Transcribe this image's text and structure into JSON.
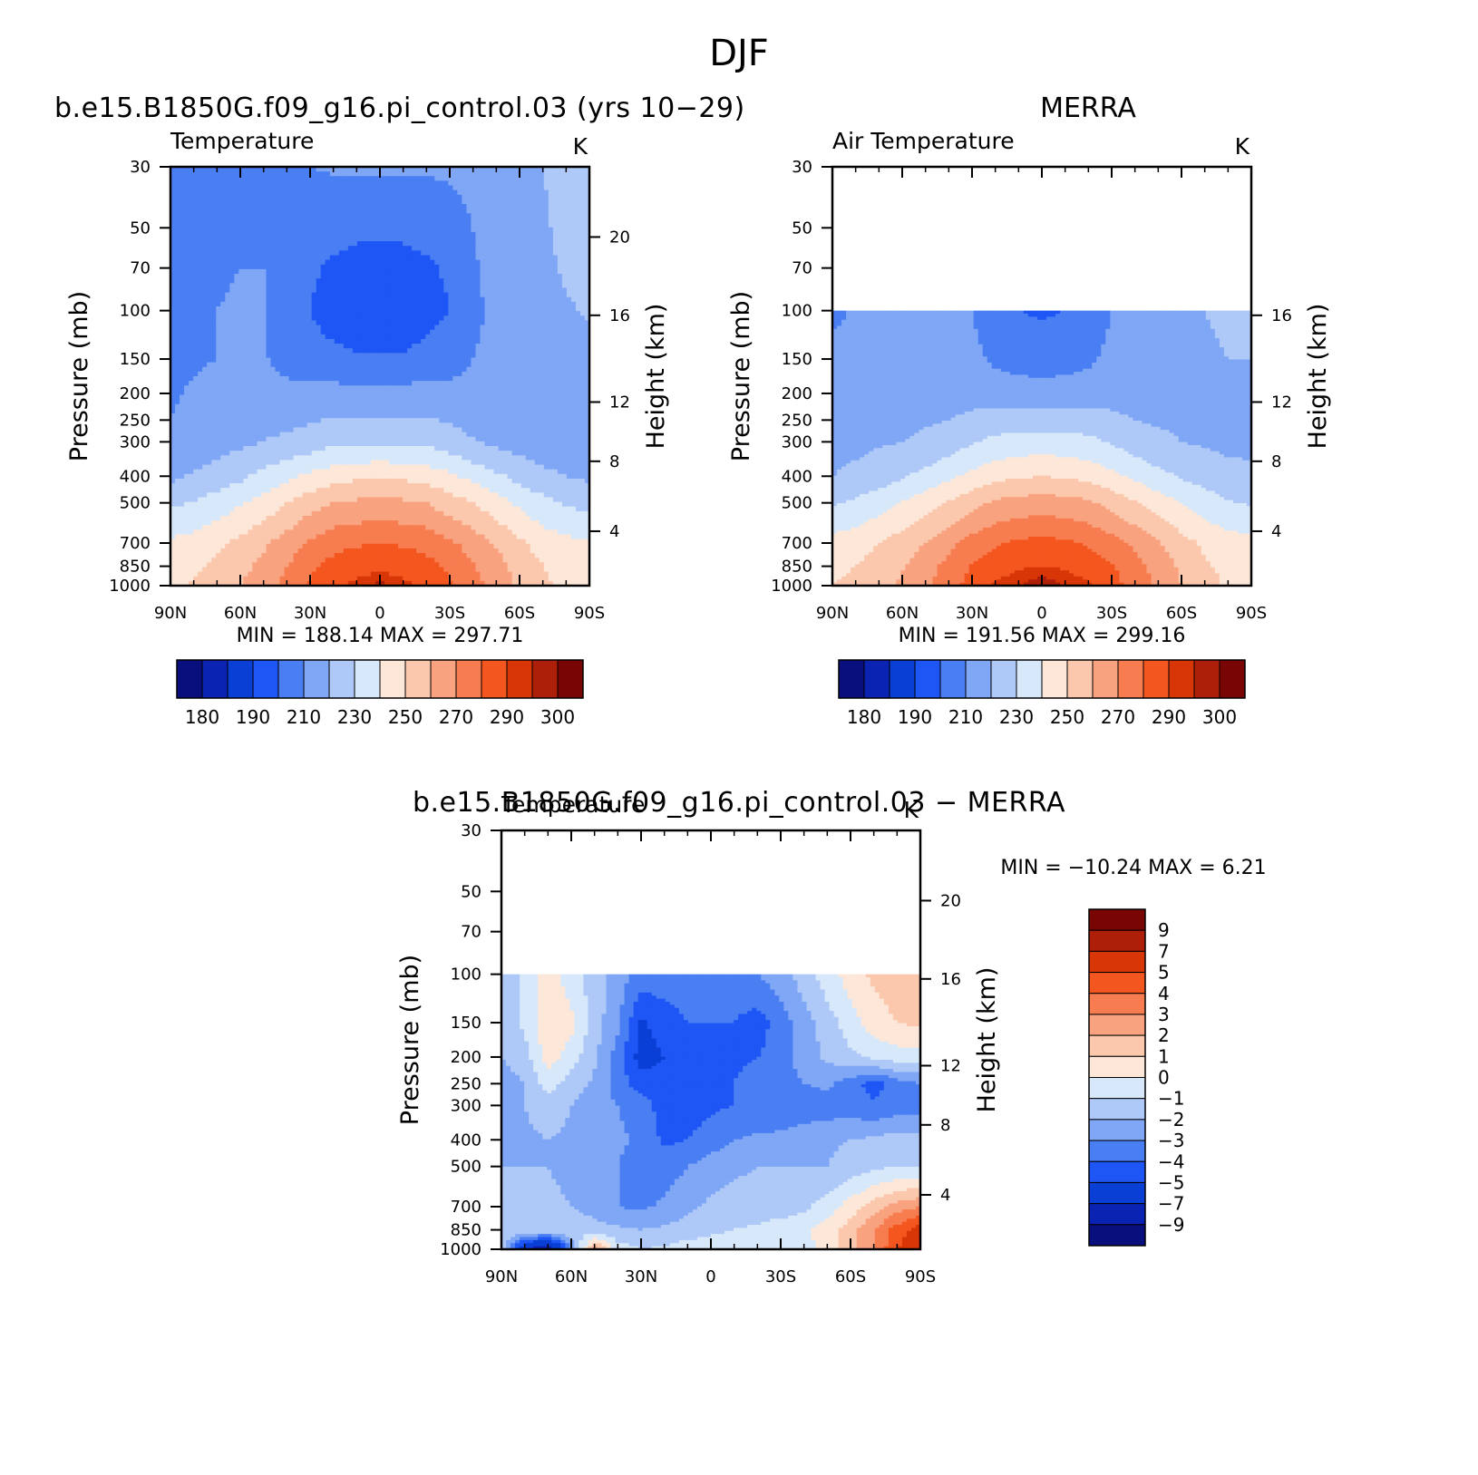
{
  "figure": {
    "title": "DJF",
    "panels": {
      "model": {
        "header": "b.e15.B1850G.f09_g16.pi_control.03 (yrs 10−29)",
        "left_label": "Temperature",
        "unit": "K",
        "stats": "MIN = 188.14   MAX = 297.71"
      },
      "merra": {
        "header": "MERRA",
        "left_label": "Air Temperature",
        "unit": "K",
        "stats": "MIN = 191.56   MAX = 299.16"
      },
      "diff": {
        "header": "b.e15.B1850G.f09_g16.pi_control.03 − MERRA",
        "left_label": "Temperature",
        "unit": "K",
        "stats": "MIN = −10.24   MAX =    6.21"
      }
    }
  },
  "colors": {
    "abs_palette": [
      "#0a0f7e",
      "#0a23b3",
      "#0a3fd6",
      "#1e56f5",
      "#4a7ef3",
      "#7fa7f5",
      "#aec8f7",
      "#d8e8fb",
      "#fde7d8",
      "#fbc8ad",
      "#f9a27f",
      "#f77c4f",
      "#f4561f",
      "#d93608",
      "#ad1f08",
      "#7a0505"
    ],
    "diff_palette": [
      "#0a0f7e",
      "#0a23b3",
      "#0a3fd6",
      "#1e56f5",
      "#4a7ef3",
      "#7fa7f5",
      "#aec8f7",
      "#d8e8fb",
      "#fde7d8",
      "#fbc8ad",
      "#f9a27f",
      "#f77c4f",
      "#f4561f",
      "#d93608",
      "#ad1f08",
      "#7a0505"
    ]
  },
  "chart_data": [
    {
      "type": "heatmap",
      "title": "b.e15.B1850G.f09_g16.pi_control.03 (yrs 10−29)",
      "left_string": "Temperature",
      "right_string": "K",
      "xlabel": "",
      "ylabel": "Pressure (mb)",
      "y2label": "Height (km)",
      "x_ticks": [
        "90N",
        "60N",
        "30N",
        "0",
        "30S",
        "60S",
        "90S"
      ],
      "y_ticks": [
        30,
        50,
        70,
        100,
        150,
        200,
        250,
        300,
        400,
        500,
        700,
        850,
        1000
      ],
      "y2_ticks": [
        4,
        8,
        12,
        16,
        20
      ],
      "ylim": [
        1000,
        30
      ],
      "y_scale": "log",
      "min": 188.14,
      "max": 297.71,
      "colorbar_levels": [
        180,
        185,
        190,
        200,
        210,
        220,
        230,
        240,
        250,
        260,
        270,
        280,
        290,
        295,
        300
      ],
      "colorbar_labels": [
        "180",
        "190",
        "210",
        "230",
        "250",
        "270",
        "290",
        "300"
      ],
      "data_top_mb": 30,
      "lat": [
        90,
        80,
        70,
        60,
        50,
        40,
        30,
        20,
        10,
        0,
        -10,
        -20,
        -30,
        -40,
        -50,
        -60,
        -70,
        -80,
        -90
      ],
      "lev": [
        30,
        50,
        70,
        100,
        150,
        200,
        250,
        300,
        400,
        500,
        700,
        850,
        1000
      ],
      "values": [
        [
          203,
          206,
          208,
          209,
          210,
          210,
          210,
          211,
          211,
          211,
          211,
          211,
          212,
          214,
          216,
          218,
          220,
          222,
          222
        ],
        [
          204,
          207,
          208,
          209,
          210,
          206,
          203,
          202,
          201,
          201,
          201,
          202,
          203,
          210,
          214,
          216,
          219,
          222,
          223
        ],
        [
          205,
          208,
          209,
          210,
          210,
          205,
          201,
          199,
          198,
          198,
          198,
          199,
          201,
          209,
          213,
          215,
          218,
          221,
          223
        ],
        [
          206,
          208,
          210,
          211,
          211,
          205,
          200,
          197,
          195,
          194,
          195,
          197,
          200,
          208,
          212,
          215,
          217,
          219,
          221
        ],
        [
          207,
          209,
          210,
          211,
          211,
          206,
          203,
          202,
          201,
          201,
          201,
          203,
          205,
          210,
          213,
          215,
          216,
          217,
          217
        ],
        [
          209,
          211,
          213,
          214,
          214,
          214,
          214,
          214,
          214,
          214,
          214,
          214,
          214,
          214,
          214,
          214,
          214,
          214,
          214
        ],
        [
          210,
          212,
          214,
          215,
          216,
          217,
          219,
          221,
          221,
          221,
          221,
          221,
          219,
          216,
          215,
          214,
          213,
          212,
          212
        ],
        [
          212,
          214,
          216,
          218,
          220,
          223,
          225,
          228,
          229,
          229,
          229,
          228,
          225,
          221,
          218,
          216,
          214,
          213,
          212
        ],
        [
          218,
          221,
          224,
          228,
          233,
          238,
          242,
          246,
          248,
          249,
          248,
          246,
          242,
          237,
          232,
          227,
          223,
          220,
          218
        ],
        [
          228,
          231,
          235,
          239,
          244,
          250,
          256,
          260,
          262,
          263,
          262,
          260,
          255,
          250,
          244,
          238,
          233,
          229,
          227
        ],
        [
          242,
          244,
          248,
          253,
          258,
          265,
          272,
          277,
          279,
          280,
          279,
          277,
          272,
          266,
          259,
          252,
          246,
          243,
          241
        ],
        [
          246,
          248,
          252,
          257,
          263,
          270,
          278,
          283,
          286,
          287,
          286,
          283,
          278,
          271,
          264,
          256,
          250,
          246,
          244
        ],
        [
          248,
          251,
          255,
          260,
          266,
          273,
          281,
          287,
          293,
          297,
          293,
          287,
          281,
          274,
          266,
          258,
          252,
          248,
          246
        ]
      ]
    },
    {
      "type": "heatmap",
      "title": "MERRA",
      "left_string": "Air Temperature",
      "right_string": "K",
      "xlabel": "",
      "ylabel": "Pressure (mb)",
      "y2label": "Height (km)",
      "x_ticks": [
        "90N",
        "60N",
        "30N",
        "0",
        "30S",
        "60S",
        "90S"
      ],
      "y_ticks": [
        30,
        50,
        70,
        100,
        150,
        200,
        250,
        300,
        400,
        500,
        700,
        850,
        1000
      ],
      "y2_ticks": [
        4,
        8,
        12,
        16
      ],
      "ylim": [
        1000,
        30
      ],
      "y_scale": "log",
      "min": 191.56,
      "max": 299.16,
      "colorbar_levels": [
        180,
        185,
        190,
        200,
        210,
        220,
        230,
        240,
        250,
        260,
        270,
        280,
        290,
        295,
        300
      ],
      "colorbar_labels": [
        "180",
        "190",
        "210",
        "230",
        "250",
        "270",
        "290",
        "300"
      ],
      "data_top_mb": 100,
      "lat": [
        90,
        80,
        70,
        60,
        50,
        40,
        30,
        20,
        10,
        0,
        -10,
        -20,
        -30,
        -40,
        -50,
        -60,
        -70,
        -80,
        -90
      ],
      "lev": [
        100,
        150,
        200,
        250,
        300,
        400,
        500,
        700,
        850,
        1000
      ],
      "values": [
        [
          208,
          211,
          212,
          213,
          213,
          213,
          210,
          204,
          200,
          199,
          200,
          204,
          210,
          213,
          216,
          218,
          220,
          221,
          222
        ],
        [
          213,
          214,
          215,
          216,
          216,
          216,
          213,
          208,
          206,
          205,
          206,
          208,
          213,
          216,
          217,
          218,
          219,
          220,
          220
        ],
        [
          216,
          217,
          217,
          217,
          217,
          217,
          217,
          216,
          215,
          215,
          215,
          216,
          217,
          217,
          217,
          217,
          218,
          218,
          218
        ],
        [
          216,
          217,
          218,
          218,
          219,
          220,
          222,
          224,
          225,
          225,
          225,
          224,
          222,
          220,
          219,
          219,
          218,
          218,
          218
        ],
        [
          217,
          218,
          219,
          220,
          222,
          225,
          229,
          233,
          234,
          235,
          234,
          233,
          229,
          225,
          222,
          220,
          219,
          218,
          218
        ],
        [
          220,
          222,
          225,
          229,
          233,
          238,
          243,
          247,
          249,
          250,
          249,
          247,
          243,
          238,
          233,
          229,
          226,
          223,
          222
        ],
        [
          229,
          232,
          236,
          241,
          246,
          251,
          257,
          262,
          264,
          265,
          264,
          262,
          257,
          251,
          245,
          240,
          235,
          231,
          229
        ],
        [
          244,
          246,
          250,
          255,
          260,
          267,
          274,
          279,
          282,
          283,
          282,
          279,
          274,
          268,
          261,
          254,
          248,
          245,
          243
        ],
        [
          248,
          250,
          254,
          259,
          266,
          273,
          281,
          286,
          289,
          290,
          289,
          286,
          281,
          274,
          266,
          258,
          251,
          248,
          246
        ],
        [
          250,
          252,
          256,
          262,
          268,
          276,
          284,
          291,
          295,
          299,
          295,
          291,
          284,
          276,
          268,
          260,
          253,
          249,
          247
        ]
      ]
    },
    {
      "type": "heatmap",
      "title": "b.e15.B1850G.f09_g16.pi_control.03 − MERRA",
      "left_string": "Temperature",
      "right_string": "K",
      "xlabel": "",
      "ylabel": "Pressure (mb)",
      "y2label": "Height (km)",
      "x_ticks": [
        "90N",
        "60N",
        "30N",
        "0",
        "30S",
        "60S",
        "90S"
      ],
      "y_ticks": [
        30,
        50,
        70,
        100,
        150,
        200,
        250,
        300,
        400,
        500,
        700,
        850,
        1000
      ],
      "y2_ticks": [
        4,
        8,
        12,
        16,
        20
      ],
      "ylim": [
        1000,
        30
      ],
      "y_scale": "log",
      "min": -10.24,
      "max": 6.21,
      "colorbar_levels": [
        -9,
        -7,
        -5,
        -4,
        -3,
        -2,
        -1,
        0,
        1,
        2,
        3,
        4,
        5,
        7,
        9
      ],
      "colorbar_labels": [
        "9",
        "7",
        "5",
        "4",
        "3",
        "2",
        "1",
        "0",
        "−1",
        "−2",
        "−3",
        "−4",
        "−5",
        "−7",
        "−9"
      ],
      "data_top_mb": 100,
      "lat": [
        90,
        80,
        70,
        60,
        50,
        40,
        30,
        20,
        10,
        0,
        -10,
        -20,
        -30,
        -40,
        -50,
        -60,
        -70,
        -80,
        -90
      ],
      "lev": [
        100,
        150,
        200,
        250,
        300,
        400,
        500,
        700,
        850,
        1000
      ],
      "values": [
        [
          -1.5,
          -0.8,
          0.5,
          -0.5,
          -1.5,
          -2.5,
          -3.5,
          -3.5,
          -3.5,
          -3.5,
          -3.5,
          -3.0,
          -2.5,
          -1.5,
          -0.5,
          0.5,
          1.2,
          1.5,
          1.5
        ],
        [
          -1.5,
          -0.8,
          0.8,
          0.3,
          -1.5,
          -2.8,
          -5.2,
          -4.5,
          -4.0,
          -4.0,
          -4.0,
          -4.5,
          -3.5,
          -2.5,
          -1.5,
          -0.5,
          0.5,
          1.0,
          1.2
        ],
        [
          -2.0,
          -1.5,
          0.5,
          -0.5,
          -1.8,
          -3.5,
          -5.5,
          -5.0,
          -4.5,
          -4.5,
          -4.2,
          -4.0,
          -3.5,
          -2.5,
          -1.8,
          -1.2,
          -0.8,
          -0.5,
          -0.5
        ],
        [
          -2.5,
          -2.0,
          -0.5,
          -1.5,
          -2.2,
          -3.5,
          -4.5,
          -4.5,
          -4.5,
          -4.5,
          -4.0,
          -3.5,
          -3.5,
          -3.0,
          -2.8,
          -3.5,
          -4.5,
          -3.5,
          -3.0
        ],
        [
          -2.5,
          -2.0,
          -1.5,
          -2.0,
          -2.5,
          -3.0,
          -3.5,
          -4.5,
          -4.5,
          -4.2,
          -4.0,
          -3.8,
          -3.5,
          -3.5,
          -3.5,
          -3.5,
          -3.8,
          -3.5,
          -3.5
        ],
        [
          -2.5,
          -2.2,
          -2.0,
          -2.2,
          -2.5,
          -2.8,
          -3.2,
          -4.2,
          -4.0,
          -3.5,
          -3.0,
          -2.8,
          -2.8,
          -2.5,
          -2.2,
          -2.0,
          -1.8,
          -1.5,
          -1.5
        ],
        [
          -2.0,
          -2.0,
          -2.0,
          -2.2,
          -2.5,
          -3.0,
          -3.5,
          -3.5,
          -3.0,
          -2.5,
          -2.2,
          -2.0,
          -2.0,
          -2.0,
          -2.0,
          -1.5,
          -1.2,
          -1.0,
          -1.0
        ],
        [
          -1.5,
          -1.5,
          -1.8,
          -2.0,
          -2.5,
          -3.0,
          -3.2,
          -2.8,
          -2.2,
          -1.8,
          -1.5,
          -1.5,
          -1.5,
          -1.2,
          -0.5,
          0.5,
          1.5,
          2.5,
          3.0
        ],
        [
          -1.0,
          -1.0,
          -1.0,
          -1.2,
          -1.5,
          -1.8,
          -2.0,
          -1.8,
          -1.5,
          -1.2,
          -1.0,
          -0.8,
          -0.5,
          -0.2,
          0.5,
          1.5,
          3.0,
          4.5,
          5.5
        ],
        [
          -1.0,
          -7.0,
          -9.0,
          -3.0,
          2.5,
          -0.5,
          -1.0,
          -0.8,
          -0.5,
          -0.5,
          -0.5,
          -0.5,
          -0.5,
          -0.5,
          0.5,
          1.5,
          3.0,
          5.0,
          6.0
        ]
      ]
    }
  ]
}
